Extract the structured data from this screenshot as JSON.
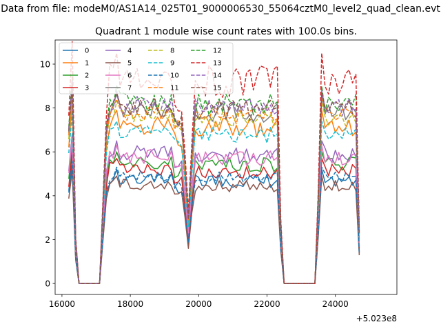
{
  "chart_data": {
    "type": "line",
    "suptitle": "Data from file: modeM0/AS1A14_025T01_9000006530_55064cztM0_level2_quad_clean.evt",
    "title": "Quadrant 1 module wise count rates with 100.0s bins.",
    "xlabel": "",
    "ylabel": "",
    "x_offset_label": "+5.023e8",
    "xlim": [
      15800,
      25800
    ],
    "ylim": [
      -0.5,
      11.1
    ],
    "xticks": [
      16000,
      18000,
      20000,
      22000,
      24000
    ],
    "xtick_labels": [
      "16000",
      "18000",
      "20000",
      "22000",
      "24000"
    ],
    "yticks": [
      0,
      2,
      4,
      6,
      8,
      10
    ],
    "ytick_labels": [
      "0",
      "2",
      "4",
      "6",
      "8",
      "10"
    ],
    "grid": false,
    "legend": {
      "position": "top-left",
      "ncol": 4
    },
    "segments": [
      {
        "start": 16200,
        "n": 3
      },
      {
        "start": 16500,
        "n": 7
      },
      {
        "start": 17200,
        "n": 24
      },
      {
        "start": 19600,
        "n": 3
      },
      {
        "start": 19900,
        "n": 26
      },
      {
        "start": 22500,
        "n": 10
      },
      {
        "start": 23500,
        "n": 13
      }
    ],
    "series": [
      {
        "name": "0",
        "color": "#1f77b4",
        "dashed": false,
        "level": 4.6,
        "peak": 5.2,
        "dip": 1.8,
        "min": 4.1
      },
      {
        "name": "1",
        "color": "#ff7f0e",
        "dashed": false,
        "level": 6.9,
        "peak": 7.9,
        "dip": 2.6,
        "min": 6.2
      },
      {
        "name": "2",
        "color": "#2ca02c",
        "dashed": false,
        "level": 5.3,
        "peak": 6.0,
        "dip": 2.3,
        "min": 4.8
      },
      {
        "name": "3",
        "color": "#d62728",
        "dashed": false,
        "level": 4.9,
        "peak": 5.7,
        "dip": 2.0,
        "min": 4.5
      },
      {
        "name": "4",
        "color": "#9467bd",
        "dashed": false,
        "level": 5.7,
        "peak": 6.5,
        "dip": 2.2,
        "min": 5.1
      },
      {
        "name": "5",
        "color": "#8c564b",
        "dashed": false,
        "level": 4.3,
        "peak": 4.9,
        "dip": 1.6,
        "min": 3.9
      },
      {
        "name": "6",
        "color": "#e377c2",
        "dashed": false,
        "level": 5.6,
        "peak": 6.3,
        "dip": 2.3,
        "min": 5.0
      },
      {
        "name": "7",
        "color": "#7f7f7f",
        "dashed": false,
        "level": 7.6,
        "peak": 8.6,
        "dip": 2.9,
        "min": 6.9
      },
      {
        "name": "8",
        "color": "#bcbd22",
        "dashed": true,
        "level": 7.3,
        "peak": 8.3,
        "dip": 2.8,
        "min": 6.7
      },
      {
        "name": "9",
        "color": "#17becf",
        "dashed": true,
        "level": 6.6,
        "peak": 7.4,
        "dip": 2.6,
        "min": 6.0
      },
      {
        "name": "10",
        "color": "#1f77b4",
        "dashed": true,
        "level": 4.7,
        "peak": 5.3,
        "dip": 1.9,
        "min": 4.3
      },
      {
        "name": "11",
        "color": "#ff7f0e",
        "dashed": true,
        "level": 7.5,
        "peak": 8.4,
        "dip": 2.9,
        "min": 6.9
      },
      {
        "name": "12",
        "color": "#2ca02c",
        "dashed": true,
        "level": 7.9,
        "peak": 9.0,
        "dip": 3.0,
        "min": 7.2
      },
      {
        "name": "13",
        "color": "#d62728",
        "dashed": true,
        "level": 8.5,
        "peak": 10.5,
        "dip": 3.3,
        "min": 7.8
      },
      {
        "name": "14",
        "color": "#9467bd",
        "dashed": true,
        "level": 7.8,
        "peak": 8.8,
        "dip": 3.0,
        "min": 7.1
      },
      {
        "name": "15",
        "color": "#8c564b",
        "dashed": true,
        "level": 7.7,
        "peak": 8.7,
        "dip": 2.9,
        "min": 7.0
      }
    ]
  }
}
